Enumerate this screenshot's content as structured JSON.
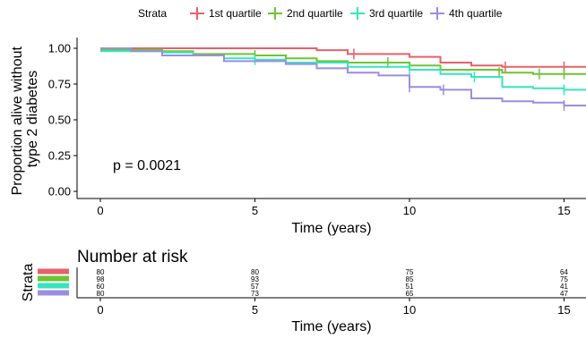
{
  "chart_data": {
    "type": "line",
    "subtype": "kaplan-meier",
    "legend": {
      "title": "Strata",
      "placement": "top",
      "entries": [
        "1st quartile",
        "2nd quartile",
        "3rd quartile",
        "4th quartile"
      ]
    },
    "xlabel": "Time (years)",
    "ylabel": "Proportion alive without type 2 diabetes",
    "ylabel_lines": [
      "Proportion alive without",
      "type 2 diabetes"
    ],
    "xlim": [
      -0.5,
      16
    ],
    "ylim": [
      -0.02,
      1.05
    ],
    "xticks": [
      0,
      5,
      10,
      15
    ],
    "yticks": [
      0.0,
      0.25,
      0.5,
      0.75,
      1.0
    ],
    "ytick_labels": [
      "0.00",
      "0.25",
      "0.50",
      "0.75",
      "1.00"
    ],
    "grid": false,
    "annotation": "p = 0.0021",
    "series": [
      {
        "name": "1st quartile",
        "color": "#E7606B",
        "steps": [
          [
            0,
            1.0
          ],
          [
            7,
            1.0
          ],
          [
            7,
            0.987
          ],
          [
            8,
            0.96
          ],
          [
            10,
            0.94
          ],
          [
            11,
            0.9
          ],
          [
            12,
            0.88
          ],
          [
            13,
            0.87
          ],
          [
            16,
            0.87
          ]
        ],
        "censor": [
          [
            8.2,
            0.96
          ],
          [
            13.1,
            0.87
          ],
          [
            15,
            0.87
          ]
        ]
      },
      {
        "name": "2nd quartile",
        "color": "#6CC531",
        "steps": [
          [
            0,
            0.99
          ],
          [
            2,
            0.98
          ],
          [
            3,
            0.96
          ],
          [
            5,
            0.95
          ],
          [
            6,
            0.93
          ],
          [
            7,
            0.91
          ],
          [
            8,
            0.9
          ],
          [
            10,
            0.88
          ],
          [
            11,
            0.85
          ],
          [
            13,
            0.83
          ],
          [
            14,
            0.82
          ],
          [
            16,
            0.82
          ]
        ],
        "censor": [
          [
            5,
            0.95
          ],
          [
            9.3,
            0.9
          ],
          [
            12.9,
            0.83
          ],
          [
            14.2,
            0.82
          ],
          [
            15,
            0.82
          ]
        ]
      },
      {
        "name": "3rd quartile",
        "color": "#36E5C0",
        "steps": [
          [
            0,
            0.98
          ],
          [
            2,
            0.97
          ],
          [
            3,
            0.95
          ],
          [
            4,
            0.93
          ],
          [
            5,
            0.92
          ],
          [
            6,
            0.9
          ],
          [
            8,
            0.87
          ],
          [
            10,
            0.85
          ],
          [
            11,
            0.82
          ],
          [
            12,
            0.8
          ],
          [
            13,
            0.73
          ],
          [
            14,
            0.72
          ],
          [
            15,
            0.71
          ],
          [
            16,
            0.71
          ]
        ],
        "censor": [
          [
            5,
            0.92
          ],
          [
            10,
            0.85
          ],
          [
            12.1,
            0.8
          ],
          [
            15,
            0.71
          ]
        ]
      },
      {
        "name": "4th quartile",
        "color": "#9E8CE3",
        "steps": [
          [
            0,
            1.0
          ],
          [
            1,
            0.98
          ],
          [
            2,
            0.95
          ],
          [
            4,
            0.91
          ],
          [
            6,
            0.89
          ],
          [
            7,
            0.86
          ],
          [
            8,
            0.83
          ],
          [
            9,
            0.81
          ],
          [
            10,
            0.73
          ],
          [
            11,
            0.71
          ],
          [
            12,
            0.65
          ],
          [
            13,
            0.63
          ],
          [
            14,
            0.62
          ],
          [
            15,
            0.6
          ],
          [
            16,
            0.6
          ]
        ],
        "censor": [
          [
            10,
            0.73
          ],
          [
            11.1,
            0.71
          ],
          [
            15,
            0.6
          ]
        ]
      }
    ],
    "risk_table": {
      "title": "Number at risk",
      "ylabel": "Strata",
      "xlabel": "Time (years)",
      "times": [
        0,
        5,
        10,
        15
      ],
      "rows": [
        {
          "name": "1st quartile",
          "color": "#E7606B",
          "counts": [
            "80",
            "80",
            "75",
            "64"
          ]
        },
        {
          "name": "2nd quartile",
          "color": "#6CC531",
          "counts": [
            "98",
            "93",
            "85",
            "75"
          ]
        },
        {
          "name": "3rd quartile",
          "color": "#36E5C0",
          "counts": [
            "60",
            "57",
            "51",
            "41"
          ]
        },
        {
          "name": "4th quartile",
          "color": "#9E8CE3",
          "counts": [
            "80",
            "73",
            "65",
            "47"
          ]
        }
      ]
    }
  }
}
